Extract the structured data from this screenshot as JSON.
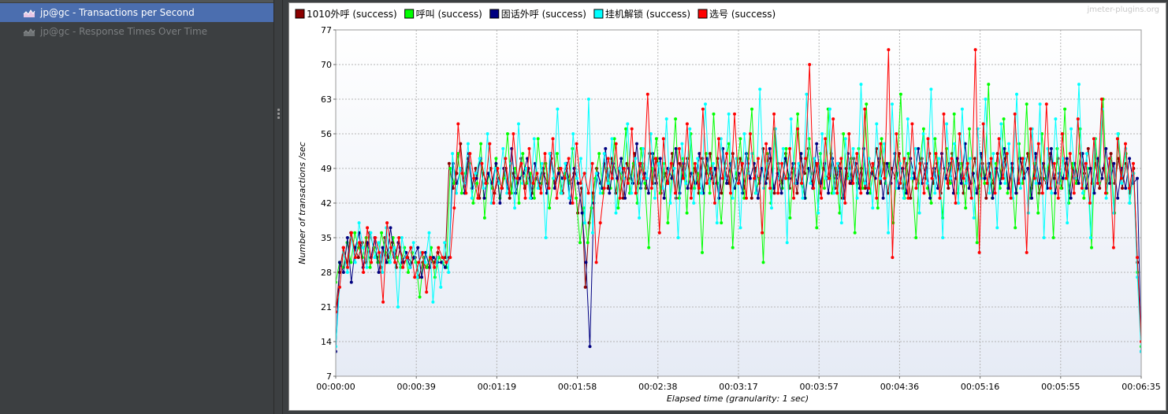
{
  "tree": {
    "items": [
      {
        "label": "jp@gc - Transactions per Second",
        "selected": true,
        "icon": "chart-icon"
      },
      {
        "label": "jp@gc - Response Times Over Time",
        "selected": false,
        "icon": "chart-icon"
      }
    ]
  },
  "watermark": "jmeter-plugins.org",
  "colors": {
    "accent_selected": "#4b6eaf",
    "series": [
      "#8b0000",
      "#00ff00",
      "#000080",
      "#00ffff",
      "#ff0000"
    ]
  },
  "chart_data": {
    "type": "line",
    "title": "",
    "xlabel": "Elapsed time (granularity: 1 sec)",
    "ylabel": "Number of transactions /sec",
    "ylim": [
      7,
      77
    ],
    "y_ticks": [
      7,
      14,
      21,
      28,
      35,
      42,
      49,
      56,
      63,
      70,
      77
    ],
    "x_range_seconds": [
      0,
      395
    ],
    "x_tick_labels": [
      "00:00:00",
      "00:00:39",
      "00:01:19",
      "00:01:58",
      "00:02:38",
      "00:03:17",
      "00:03:57",
      "00:04:36",
      "00:05:16",
      "00:05:55",
      "00:06:35"
    ],
    "grid": true,
    "legend_position": "top-left",
    "series": [
      {
        "name": "1010外呼 (success)",
        "color": "#8b0000",
        "values": [
          20,
          28,
          33,
          30,
          36,
          33,
          31,
          34,
          30,
          36,
          33,
          31,
          29,
          35,
          31,
          34,
          29,
          33,
          30,
          31,
          30,
          31,
          27,
          30,
          29,
          31,
          30,
          32,
          30,
          31,
          50,
          45,
          48,
          54,
          46,
          51,
          45,
          49,
          43,
          48,
          46,
          49,
          44,
          47,
          45,
          49,
          43,
          48,
          46,
          51,
          45,
          49,
          44,
          47,
          45,
          48,
          46,
          51,
          46,
          49,
          44,
          49,
          46,
          48,
          40,
          45,
          25,
          38,
          44,
          49,
          46,
          50,
          45,
          51,
          44,
          49,
          43,
          50,
          47,
          52,
          46,
          50,
          45,
          52,
          46,
          51,
          44,
          48,
          46,
          52,
          43,
          50,
          47,
          51,
          45,
          49,
          44,
          51,
          48,
          52,
          46,
          51,
          44,
          49,
          46,
          52,
          47,
          51,
          45,
          50,
          43,
          49,
          46,
          53,
          47,
          51,
          44,
          50,
          46,
          52,
          45,
          49,
          44,
          51,
          48,
          53,
          46,
          50,
          44,
          49,
          47,
          52,
          45,
          50,
          43,
          49,
          46,
          51,
          46,
          49,
          45,
          51,
          48,
          53,
          46,
          50,
          44,
          49,
          47,
          52,
          45,
          50,
          43,
          48,
          46,
          51,
          47,
          52,
          46,
          50,
          44,
          49,
          45,
          52,
          47,
          50,
          44,
          49,
          46,
          51,
          45,
          50,
          43,
          48,
          46,
          52,
          47,
          51,
          45,
          49,
          44,
          51,
          48,
          52,
          45,
          50,
          44,
          47,
          46,
          52,
          47,
          51,
          45,
          50,
          44,
          49,
          46,
          52,
          48,
          53,
          46,
          50,
          45,
          49,
          46,
          52,
          46,
          51,
          45,
          50,
          44,
          49,
          30,
          12
        ]
      },
      {
        "name": "呼叫 (success)",
        "color": "#00ff00",
        "values": [
          26,
          30,
          29,
          34,
          30,
          36,
          33,
          31,
          35,
          29,
          33,
          30,
          36,
          32,
          30,
          35,
          31,
          29,
          33,
          28,
          32,
          30,
          23,
          31,
          29,
          33,
          27,
          31,
          30,
          29,
          49,
          46,
          52,
          44,
          48,
          50,
          42,
          46,
          54,
          39,
          48,
          45,
          51,
          43,
          47,
          56,
          44,
          49,
          42,
          52,
          46,
          48,
          43,
          55,
          46,
          50,
          41,
          47,
          52,
          44,
          48,
          46,
          53,
          43,
          34,
          41,
          34,
          41,
          47,
          52,
          44,
          49,
          45,
          55,
          41,
          48,
          57,
          44,
          50,
          42,
          53,
          46,
          33,
          49,
          55,
          44,
          50,
          38,
          47,
          59,
          43,
          51,
          40,
          56,
          45,
          48,
          32,
          52,
          44,
          60,
          46,
          38,
          50,
          54,
          33,
          48,
          55,
          43,
          51,
          61,
          44,
          47,
          30,
          52,
          42,
          57,
          48,
          45,
          53,
          39,
          50,
          60,
          46,
          43,
          55,
          48,
          37,
          52,
          45,
          61,
          44,
          49,
          40,
          56,
          47,
          51,
          36,
          53,
          45,
          62,
          44,
          49,
          41,
          55,
          46,
          50,
          38,
          48,
          64,
          43,
          52,
          47,
          35,
          50,
          57,
          45,
          42,
          55,
          48,
          39,
          53,
          46,
          60,
          44,
          50,
          41,
          57,
          48,
          34,
          52,
          46,
          66,
          43,
          50,
          45,
          59,
          44,
          49,
          37,
          54,
          46,
          62,
          43,
          50,
          40,
          56,
          47,
          51,
          35,
          53,
          45,
          61,
          42,
          50,
          46,
          57,
          43,
          49,
          33,
          55,
          46,
          63,
          44,
          51,
          40,
          56,
          47,
          52,
          42,
          48,
          28,
          13
        ]
      },
      {
        "name": "固话外呼 (success)",
        "color": "#000080",
        "values": [
          12,
          30,
          28,
          35,
          26,
          33,
          36,
          29,
          34,
          31,
          35,
          28,
          33,
          30,
          37,
          31,
          34,
          30,
          32,
          29,
          31,
          33,
          27,
          32,
          29,
          31,
          30,
          30,
          29,
          31,
          50,
          46,
          49,
          44,
          52,
          45,
          47,
          51,
          43,
          48,
          46,
          50,
          42,
          49,
          45,
          53,
          44,
          47,
          48,
          51,
          43,
          50,
          46,
          49,
          44,
          52,
          45,
          48,
          47,
          50,
          42,
          49,
          46,
          40,
          30,
          13,
          42,
          48,
          45,
          53,
          44,
          50,
          47,
          51,
          43,
          49,
          46,
          54,
          45,
          48,
          44,
          52,
          46,
          51,
          43,
          49,
          47,
          53,
          44,
          50,
          45,
          48,
          46,
          52,
          44,
          51,
          47,
          49,
          43,
          53,
          46,
          50,
          45,
          48,
          44,
          52,
          47,
          50,
          43,
          49,
          46,
          53,
          45,
          48,
          44,
          51,
          47,
          50,
          46,
          52,
          43,
          49,
          45,
          54,
          46,
          50,
          44,
          51,
          47,
          49,
          43,
          52,
          46,
          50,
          45,
          53,
          44,
          48,
          47,
          51,
          43,
          50,
          46,
          52,
          45,
          49,
          44,
          51,
          47,
          53,
          46,
          50,
          43,
          49,
          45,
          52,
          47,
          50,
          44,
          51,
          46,
          54,
          45,
          48,
          44,
          52,
          47,
          50,
          43,
          49,
          46,
          53,
          45,
          50,
          44,
          51,
          47,
          49,
          43,
          52,
          46,
          50,
          45,
          53,
          44,
          48,
          47,
          51,
          43,
          50,
          46,
          52,
          45,
          49,
          44,
          51,
          47,
          53,
          46,
          50,
          43,
          49,
          45,
          51,
          46,
          47,
          12
        ]
      },
      {
        "name": "挂机解锁 (success)",
        "color": "#00ffff",
        "values": [
          13,
          25,
          32,
          28,
          35,
          30,
          38,
          33,
          29,
          36,
          31,
          34,
          28,
          37,
          30,
          33,
          21,
          35,
          31,
          29,
          34,
          27,
          32,
          30,
          36,
          22,
          31,
          25,
          34,
          28,
          52,
          44,
          49,
          46,
          54,
          43,
          48,
          51,
          45,
          56,
          42,
          49,
          46,
          53,
          44,
          50,
          41,
          58,
          46,
          49,
          43,
          55,
          45,
          50,
          35,
          52,
          47,
          61,
          44,
          50,
          43,
          56,
          47,
          51,
          38,
          63,
          36,
          48,
          44,
          52,
          46,
          55,
          40,
          49,
          47,
          58,
          44,
          51,
          39,
          53,
          47,
          56,
          43,
          50,
          45,
          59,
          42,
          49,
          35,
          54,
          46,
          57,
          42,
          51,
          44,
          62,
          46,
          50,
          38,
          55,
          47,
          60,
          43,
          51,
          37,
          56,
          48,
          52,
          44,
          65,
          45,
          50,
          41,
          57,
          47,
          53,
          34,
          59,
          46,
          50,
          43,
          64,
          46,
          51,
          40,
          56,
          47,
          61,
          44,
          50,
          38,
          55,
          47,
          53,
          43,
          66,
          46,
          51,
          41,
          58,
          47,
          54,
          36,
          62,
          45,
          50,
          43,
          59,
          47,
          53,
          40,
          56,
          46,
          65,
          44,
          51,
          35,
          58,
          47,
          54,
          42,
          61,
          46,
          51,
          39,
          57,
          47,
          63,
          44,
          52,
          37,
          58,
          46,
          54,
          43,
          64,
          45,
          51,
          40,
          57,
          46,
          62,
          35,
          53,
          44,
          59,
          46,
          51,
          38,
          57,
          47,
          66,
          44,
          52,
          35,
          55,
          46,
          61,
          43,
          51,
          40,
          56,
          46,
          53,
          42,
          48,
          27,
          12
        ]
      },
      {
        "name": "选号 (success)",
        "color": "#ff0000",
        "values": [
          20,
          25,
          33,
          29,
          36,
          31,
          34,
          28,
          37,
          30,
          35,
          32,
          22,
          38,
          33,
          30,
          35,
          29,
          31,
          33,
          27,
          30,
          32,
          24,
          31,
          29,
          33,
          31,
          30,
          31,
          41,
          58,
          48,
          44,
          52,
          47,
          43,
          50,
          46,
          54,
          42,
          49,
          45,
          51,
          44,
          56,
          47,
          50,
          43,
          53,
          46,
          48,
          44,
          52,
          45,
          55,
          43,
          49,
          47,
          51,
          42,
          54,
          46,
          48,
          44,
          50,
          30,
          38,
          45,
          51,
          47,
          54,
          43,
          49,
          46,
          57,
          44,
          50,
          47,
          64,
          45,
          51,
          36,
          55,
          46,
          50,
          44,
          53,
          47,
          58,
          43,
          50,
          45,
          61,
          46,
          49,
          42,
          55,
          47,
          52,
          44,
          60,
          46,
          50,
          43,
          56,
          47,
          51,
          36,
          54,
          45,
          60,
          44,
          50,
          47,
          53,
          43,
          57,
          46,
          51,
          70,
          45,
          50,
          43,
          55,
          47,
          59,
          44,
          51,
          42,
          56,
          46,
          52,
          44,
          61,
          45,
          50,
          43,
          54,
          47,
          73,
          31,
          56,
          46,
          51,
          43,
          58,
          45,
          50,
          44,
          55,
          47,
          52,
          43,
          60,
          46,
          51,
          42,
          56,
          47,
          50,
          43,
          73,
          32,
          58,
          46,
          51,
          44,
          55,
          47,
          52,
          43,
          60,
          46,
          51,
          32,
          57,
          47,
          54,
          44,
          62,
          45,
          50,
          43,
          56,
          47,
          52,
          44,
          59,
          45,
          50,
          42,
          55,
          46,
          63,
          44,
          51,
          33,
          55,
          47,
          54,
          45,
          50,
          31,
          14
        ]
      }
    ]
  }
}
